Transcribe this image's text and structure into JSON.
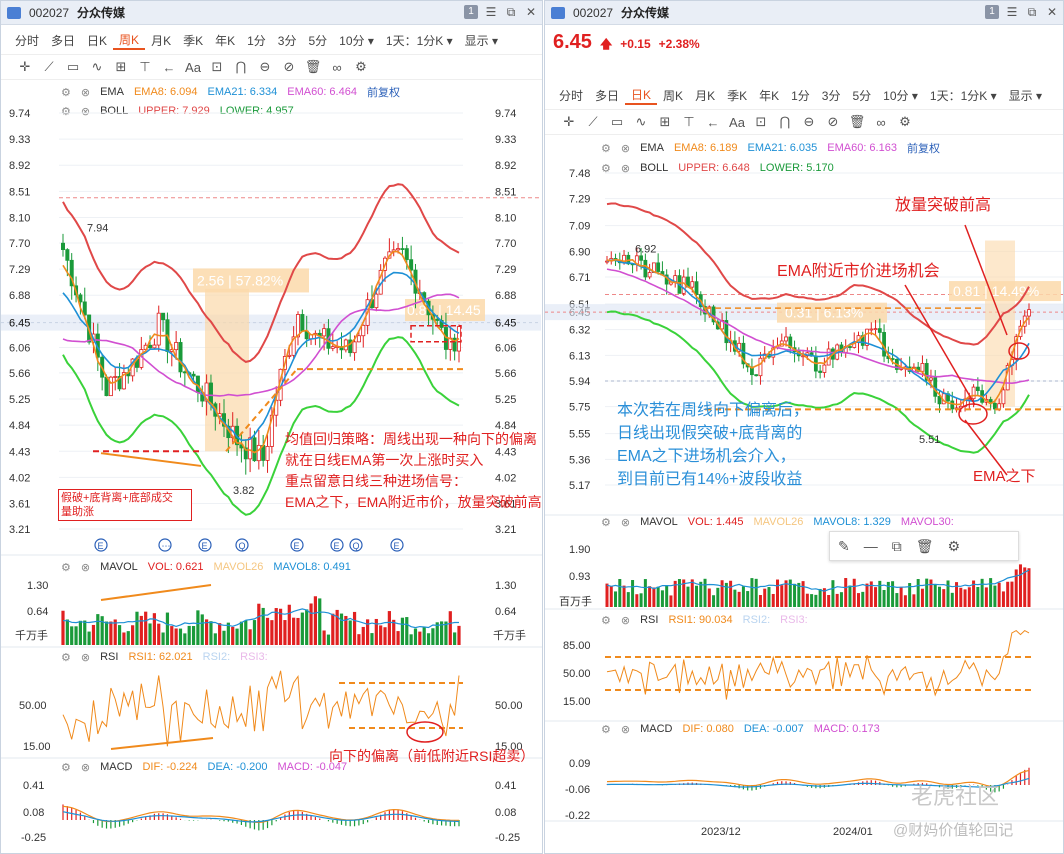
{
  "left": {
    "title": {
      "code": "002027",
      "name": "分众传媒"
    },
    "tabs": [
      "分时",
      "多日",
      "日K",
      "周K",
      "月K",
      "季K",
      "年K",
      "1分",
      "3分",
      "5分",
      "10分",
      "1天：1分K",
      "显示"
    ],
    "active_tab": "周K",
    "ema": {
      "label": "EMA",
      "ema8": "EMA8: 6.094",
      "ema21": "EMA21: 6.334",
      "ema60": "EMA60: 6.464",
      "adj": "前复权"
    },
    "boll": {
      "label": "BOLL",
      "upper": "UPPER: 7.929",
      "lower": "LOWER: 4.957"
    },
    "yaxis": [
      "9.74",
      "9.33",
      "8.92",
      "8.51",
      "8.10",
      "7.70",
      "7.29",
      "6.88",
      "6.45",
      "6.06",
      "5.66",
      "5.25",
      "4.84",
      "4.43",
      "4.02",
      "3.61",
      "3.21"
    ],
    "current_price_tag": "6.45",
    "high_label": "7.94",
    "low_label": "3.82",
    "range_box1": "2.56 | 57.82%",
    "range_box2": "0.81 | 14.45",
    "annotations": {
      "strategy": [
        "均值回归策略：周线出现一种向下的偏离",
        "就在日线EMA第一次上涨时买入",
        "重点留意日线三种进场信号：",
        "EMA之下，EMA附近市价，放量突破前高"
      ],
      "divergence": [
        "假破+底背离+底部成交",
        "量助涨"
      ],
      "rsi_note": "向下的偏离（前低附近RSI超卖）"
    },
    "mavol": {
      "label": "MAVOL",
      "vol": "VOL: 0.621",
      "mavol26": "MAVOL26",
      "mavol8": "MAVOL8: 0.491",
      "y": [
        "1.30",
        "0.64"
      ],
      "unit": "千万手"
    },
    "rsi": {
      "label": "RSI",
      "rsi1": "RSI1: 62.021",
      "rsi2": "RSI2:",
      "rsi3": "RSI3:",
      "y": [
        "50.00",
        "15.00"
      ]
    },
    "macd": {
      "label": "MACD",
      "dif": "DIF: -0.224",
      "dea": "DEA: -0.200",
      "macd": "MACD: -0.047",
      "y": [
        "0.41",
        "0.08",
        "-0.25"
      ]
    }
  },
  "right": {
    "title": {
      "code": "002027",
      "name": "分众传媒"
    },
    "price": "6.45",
    "change": "+0.15",
    "pct": "+2.38%",
    "tabs": [
      "分时",
      "多日",
      "日K",
      "周K",
      "月K",
      "季K",
      "年K",
      "1分",
      "3分",
      "5分",
      "10分",
      "1天：1分K",
      "显示"
    ],
    "active_tab": "日K",
    "ema": {
      "label": "EMA",
      "ema8": "EMA8: 6.189",
      "ema21": "EMA21: 6.035",
      "ema60": "EMA60: 6.163",
      "adj": "前复权"
    },
    "boll": {
      "label": "BOLL",
      "upper": "UPPER: 6.648",
      "lower": "LOWER: 5.170"
    },
    "yaxis": [
      "7.48",
      "7.29",
      "7.09",
      "6.90",
      "6.71",
      "6.51",
      "6.45",
      "6.32",
      "6.13",
      "5.94",
      "5.75",
      "5.55",
      "5.36",
      "5.17"
    ],
    "high_label": "6.92",
    "low_label": "5.51",
    "range_box1": "0.31 | 6.13%",
    "range_box2": "0.81 | 14.49%",
    "annotations": {
      "breakout": "放量突破前高",
      "ema_near": "EMA附近市价进场机会",
      "below": "EMA之下",
      "desc": [
        "本次若在周线向下偏离后，",
        "日线出现假突破+底背离的",
        "EMA之下进场机会介入，",
        "到目前已有14%+波段收益"
      ]
    },
    "mavol": {
      "label": "MAVOL",
      "vol": "VOL: 1.445",
      "mavol26": "MAVOL26",
      "mavol8": "MAVOL8: 1.329",
      "mavol30": "MAVOL30:",
      "y": [
        "1.90",
        "0.93"
      ],
      "unit": "百万手"
    },
    "rsi": {
      "label": "RSI",
      "rsi1": "RSI1: 90.034",
      "rsi2": "RSI2:",
      "rsi3": "RSI3:",
      "y": [
        "85.00",
        "50.00",
        "15.00"
      ]
    },
    "macd": {
      "label": "MACD",
      "dif": "DIF: 0.080",
      "dea": "DEA: -0.007",
      "macd": "MACD: 0.173",
      "y": [
        "0.09",
        "-0.06",
        "-0.22"
      ]
    },
    "dates": [
      "2023/12",
      "2024/01"
    ],
    "watermark1": "老虎社区",
    "watermark2": "@财妈价值轮回记"
  },
  "colors": {
    "up": "#e02020",
    "down": "#1a9a3a",
    "ema8": "#f08a1c",
    "ema21": "#1e90d6",
    "ema60": "#d14fd1",
    "upper": "#e04848",
    "lower": "#3ad23a",
    "annot": "#e02020",
    "blue_annot": "#2a8fd8"
  }
}
